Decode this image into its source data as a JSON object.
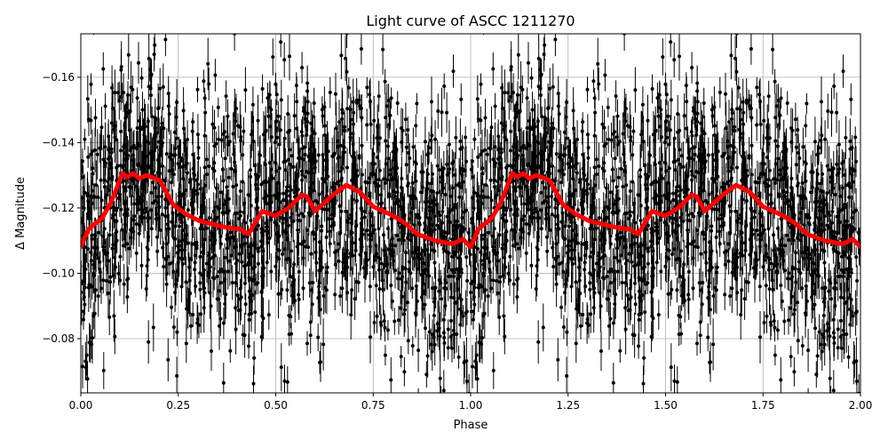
{
  "chart_data": {
    "type": "scatter",
    "title": "Light curve of ASCC 1211270",
    "xlabel": "Phase",
    "ylabel": "Δ Magnitude",
    "xlim": [
      0,
      2
    ],
    "ylim": [
      -0.0634,
      -0.1733
    ],
    "y_inverted": true,
    "grid": true,
    "xticks": [
      "0.00",
      "0.25",
      "0.50",
      "0.75",
      "1.00",
      "1.25",
      "1.50",
      "1.75",
      "2.00"
    ],
    "xtick_values": [
      0,
      0.25,
      0.5,
      0.75,
      1,
      1.25,
      1.5,
      1.75,
      2
    ],
    "yticks": [
      "−0.16",
      "−0.14",
      "−0.12",
      "−0.10",
      "−0.08"
    ],
    "ytick_values": [
      -0.16,
      -0.14,
      -0.12,
      -0.1,
      -0.08
    ],
    "colors": {
      "points": "#000000",
      "binned_curve": "#ff0000",
      "grid": "#b0b0b0"
    },
    "scatter_note_visible": false,
    "binned_curve": {
      "x": [
        0,
        0.02,
        0.055,
        0.077,
        0.107,
        0.12,
        0.135,
        0.15,
        0.169,
        0.203,
        0.237,
        0.271,
        0.305,
        0.339,
        0.374,
        0.408,
        0.43,
        0.465,
        0.499,
        0.533,
        0.567,
        0.58,
        0.601,
        0.647,
        0.681,
        0.715,
        0.749,
        0.795,
        0.829,
        0.863,
        0.909,
        0.954,
        0.98,
        1.0,
        1.02,
        1.055,
        1.077,
        1.107,
        1.12,
        1.135,
        1.15,
        1.169,
        1.203,
        1.237,
        1.271,
        1.305,
        1.339,
        1.374,
        1.408,
        1.43,
        1.465,
        1.499,
        1.533,
        1.567,
        1.58,
        1.601,
        1.647,
        1.681,
        1.715,
        1.749,
        1.795,
        1.829,
        1.863,
        1.909,
        1.954,
        1.98,
        2.0
      ],
      "y": [
        -0.108,
        -0.1135,
        -0.117,
        -0.1216,
        -0.1306,
        -0.1295,
        -0.1306,
        -0.129,
        -0.13,
        -0.1284,
        -0.121,
        -0.118,
        -0.116,
        -0.115,
        -0.114,
        -0.1135,
        -0.112,
        -0.119,
        -0.1176,
        -0.12,
        -0.124,
        -0.1235,
        -0.119,
        -0.124,
        -0.127,
        -0.125,
        -0.1205,
        -0.118,
        -0.1156,
        -0.112,
        -0.11,
        -0.109,
        -0.1105,
        -0.108,
        -0.1135,
        -0.117,
        -0.1216,
        -0.1306,
        -0.1295,
        -0.1306,
        -0.129,
        -0.13,
        -0.1284,
        -0.121,
        -0.118,
        -0.116,
        -0.115,
        -0.114,
        -0.1135,
        -0.112,
        -0.119,
        -0.1176,
        -0.12,
        -0.124,
        -0.1235,
        -0.119,
        -0.124,
        -0.127,
        -0.125,
        -0.1205,
        -0.118,
        -0.1156,
        -0.112,
        -0.11,
        -0.109,
        -0.1105,
        -0.108
      ]
    }
  }
}
